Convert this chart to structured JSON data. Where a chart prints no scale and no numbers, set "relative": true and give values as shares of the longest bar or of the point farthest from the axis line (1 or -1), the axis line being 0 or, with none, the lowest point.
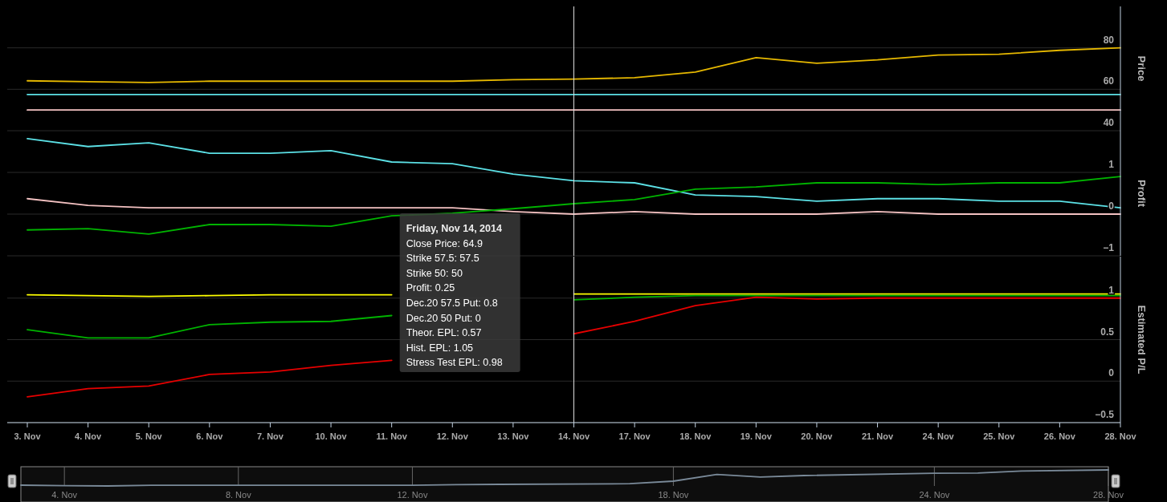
{
  "chart_data": [
    {
      "type": "line",
      "ylabel": "Price",
      "categories": [
        "3. Nov",
        "4. Nov",
        "5. Nov",
        "6. Nov",
        "7. Nov",
        "10. Nov",
        "11. Nov",
        "12. Nov",
        "13. Nov",
        "14. Nov",
        "17. Nov",
        "18. Nov",
        "19. Nov",
        "20. Nov",
        "21. Nov",
        "24. Nov",
        "25. Nov",
        "26. Nov",
        "28. Nov"
      ],
      "ylim": [
        40,
        100
      ],
      "yticks": [
        40,
        60,
        80
      ],
      "grid": "y",
      "tick_labels": "y",
      "line_style": "solid",
      "ref_lines": [
        {
          "axis": "x",
          "value": "14. Nov",
          "color": "#dddddd"
        }
      ],
      "series": [
        {
          "color": "#e6b800",
          "values": [
            64.1,
            63.7,
            63.3,
            63.9,
            63.9,
            63.9,
            63.9,
            63.9,
            64.6,
            64.9,
            65.6,
            68.3,
            75.3,
            72.6,
            74.2,
            76.5,
            76.9,
            78.8,
            80.0
          ]
        },
        {
          "color": "#5ce1e6",
          "values": [
            57.5,
            57.5,
            57.5,
            57.5,
            57.5,
            57.5,
            57.5,
            57.5,
            57.5,
            57.5,
            57.5,
            57.5,
            57.5,
            57.5,
            57.5,
            57.5,
            57.5,
            57.5,
            57.5
          ]
        },
        {
          "color": "#f4c2c2",
          "values": [
            50,
            50,
            50,
            50,
            50,
            50,
            50,
            50,
            50,
            50,
            50,
            50,
            50,
            50,
            50,
            50,
            50,
            50,
            50
          ]
        }
      ]
    },
    {
      "type": "line",
      "ylabel": "Profit",
      "categories": [
        "3. Nov",
        "4. Nov",
        "5. Nov",
        "6. Nov",
        "7. Nov",
        "10. Nov",
        "11. Nov",
        "12. Nov",
        "13. Nov",
        "14. Nov",
        "17. Nov",
        "18. Nov",
        "19. Nov",
        "20. Nov",
        "21. Nov",
        "24. Nov",
        "25. Nov",
        "26. Nov",
        "28. Nov"
      ],
      "ylim": [
        -1,
        2
      ],
      "yticks": [
        {
          "value": -1,
          "label": "−1"
        },
        0,
        1
      ],
      "grid": "y",
      "tick_labels": "y",
      "line_style": "solid",
      "ref_lines": [
        {
          "axis": "x",
          "value": "14. Nov",
          "color": "#dddddd"
        }
      ],
      "annotations": [
        "Friday, Nov 14, 2014",
        "Close Price: 64.9",
        "Strike 57.5: 57.5",
        "Strike 50: 50",
        "Profit: 0.25",
        "Dec.20 57.5 Put: 0.8",
        "Dec.20 50 Put: 0",
        "Theor. EPL: 0.57",
        "Hist. EPL: 1.05",
        "Stress Test EPL: 0.98"
      ],
      "series": [
        {
          "color": "#5ce1e6",
          "values": [
            1.81,
            1.62,
            1.71,
            1.46,
            1.46,
            1.52,
            1.25,
            1.21,
            0.96,
            0.8,
            0.75,
            0.46,
            0.42,
            0.31,
            0.37,
            0.37,
            0.31,
            0.31,
            0.15
          ]
        },
        {
          "color": "#f4c2c2",
          "values": [
            0.37,
            0.21,
            0.15,
            0.15,
            0.15,
            0.15,
            0.15,
            0.15,
            0.06,
            0,
            0.06,
            0,
            0,
            0,
            0.06,
            0,
            0,
            0,
            0
          ]
        },
        {
          "color": "#00b300",
          "values": [
            -0.38,
            -0.35,
            -0.48,
            -0.25,
            -0.25,
            -0.29,
            -0.04,
            0.02,
            0.13,
            0.25,
            0.35,
            0.6,
            0.65,
            0.75,
            0.75,
            0.71,
            0.75,
            0.75,
            0.9
          ]
        }
      ]
    },
    {
      "type": "line",
      "ylabel": "Estimated P/L",
      "categories": [
        "3. Nov",
        "4. Nov",
        "5. Nov",
        "6. Nov",
        "7. Nov",
        "10. Nov",
        "11. Nov",
        "12. Nov",
        "13. Nov",
        "14. Nov",
        "17. Nov",
        "18. Nov",
        "19. Nov",
        "20. Nov",
        "21. Nov",
        "24. Nov",
        "25. Nov",
        "26. Nov",
        "28. Nov"
      ],
      "ylim": [
        -0.5,
        1.5
      ],
      "yticks": [
        {
          "value": -0.5,
          "label": "−0.5"
        },
        0,
        0.5,
        1
      ],
      "grid": "y",
      "line_style": "solid",
      "ref_lines": [
        {
          "axis": "x",
          "value": "14. Nov",
          "color": "#dddddd"
        }
      ],
      "series": [
        {
          "color": "#ffff00",
          "values": [
            1.04,
            1.03,
            1.02,
            1.03,
            1.04,
            1.04,
            1.04,
            null,
            null,
            1.05,
            1.05,
            1.05,
            1.05,
            1.05,
            1.05,
            1.05,
            1.05,
            1.05,
            1.05
          ]
        },
        {
          "color": "#00b300",
          "values": [
            0.62,
            0.52,
            0.52,
            0.68,
            0.71,
            0.72,
            0.79,
            null,
            null,
            0.98,
            1.01,
            1.03,
            1.03,
            1.03,
            1.03,
            1.03,
            1.03,
            1.03,
            1.03
          ]
        },
        {
          "color": "#e60000",
          "values": [
            -0.19,
            -0.09,
            -0.06,
            0.08,
            0.11,
            0.19,
            0.25,
            null,
            null,
            0.57,
            0.72,
            0.91,
            1.01,
            0.99,
            1.0,
            1.0,
            1.0,
            1.0,
            1.0
          ]
        }
      ]
    },
    {
      "type": "line",
      "relative": true,
      "tick_labels": "x",
      "x": [
        "2014-11-03",
        "2014-11-04",
        "2014-11-05",
        "2014-11-06",
        "2014-11-07",
        "2014-11-10",
        "2014-11-11",
        "2014-11-12",
        "2014-11-13",
        "2014-11-14",
        "2014-11-17",
        "2014-11-18",
        "2014-11-19",
        "2014-11-20",
        "2014-11-21",
        "2014-11-24",
        "2014-11-25",
        "2014-11-26",
        "2014-11-28"
      ],
      "xlim": [
        "2014-11-03",
        "2014-11-28"
      ],
      "xticks": [
        {
          "value": "2014-11-04",
          "label": "4. Nov"
        },
        {
          "value": "2014-11-08",
          "label": "8. Nov"
        },
        {
          "value": "2014-11-12",
          "label": "12. Nov"
        },
        {
          "value": "2014-11-18",
          "label": "18. Nov"
        },
        {
          "value": "2014-11-24",
          "label": "24. Nov"
        },
        {
          "value": "2014-11-28",
          "label": "28. Nov"
        }
      ],
      "grid": "x",
      "series": [
        {
          "color": "#7a8a99",
          "values": [
            0.05,
            0.02,
            0,
            0.04,
            0.04,
            0.04,
            0.04,
            0.04,
            0.08,
            0.1,
            0.14,
            0.3,
            0.72,
            0.56,
            0.65,
            0.79,
            0.81,
            0.93,
            1
          ]
        }
      ]
    }
  ]
}
